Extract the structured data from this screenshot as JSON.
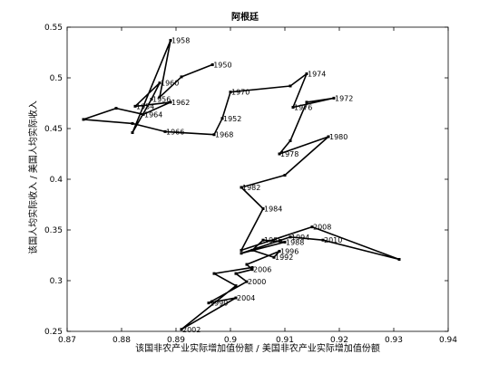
{
  "chart_data": {
    "type": "line",
    "title": "阿根廷",
    "xlabel": "该国非农产业实际增加值份额 / 美国非农产业实际增加值份额",
    "ylabel": "该国人均实际收入 / 美国人均实际收入",
    "xlim": [
      0.87,
      0.94
    ],
    "ylim": [
      0.25,
      0.55
    ],
    "xticks": [
      "0.87",
      "0.88",
      "0.89",
      "0.9",
      "0.91",
      "0.92",
      "0.93",
      "0.94"
    ],
    "yticks": [
      "0.25",
      "0.3",
      "0.35",
      "0.4",
      "0.45",
      "0.5",
      "0.55"
    ],
    "grid": false,
    "series": [
      {
        "color": "#000000",
        "points": [
          {
            "x": 0.8967,
            "y": 0.513,
            "label": "1950"
          },
          {
            "x": 0.891,
            "y": 0.501,
            "label": ""
          },
          {
            "x": 0.887,
            "y": 0.481,
            "label": ""
          },
          {
            "x": 0.889,
            "y": 0.537,
            "label": "1958"
          },
          {
            "x": 0.882,
            "y": 0.446,
            "label": ""
          },
          {
            "x": 0.8855,
            "y": 0.479,
            "label": "1956"
          },
          {
            "x": 0.887,
            "y": 0.495,
            "label": "1960"
          },
          {
            "x": 0.8825,
            "y": 0.472,
            "label": "1954"
          },
          {
            "x": 0.889,
            "y": 0.476,
            "label": "1962"
          },
          {
            "x": 0.884,
            "y": 0.464,
            "label": "1964"
          },
          {
            "x": 0.879,
            "y": 0.47,
            "label": ""
          },
          {
            "x": 0.873,
            "y": 0.459,
            "label": ""
          },
          {
            "x": 0.882,
            "y": 0.455,
            "label": ""
          },
          {
            "x": 0.888,
            "y": 0.447,
            "label": "1966"
          },
          {
            "x": 0.897,
            "y": 0.444,
            "label": "1968"
          },
          {
            "x": 0.8985,
            "y": 0.46,
            "label": "1952"
          },
          {
            "x": 0.9,
            "y": 0.486,
            "label": "1970"
          },
          {
            "x": 0.911,
            "y": 0.492,
            "label": ""
          },
          {
            "x": 0.914,
            "y": 0.504,
            "label": "1974"
          },
          {
            "x": 0.9115,
            "y": 0.471,
            "label": "1976"
          },
          {
            "x": 0.919,
            "y": 0.48,
            "label": "1972"
          },
          {
            "x": 0.914,
            "y": 0.476,
            "label": ""
          },
          {
            "x": 0.911,
            "y": 0.438,
            "label": ""
          },
          {
            "x": 0.909,
            "y": 0.425,
            "label": "1978"
          },
          {
            "x": 0.918,
            "y": 0.442,
            "label": "1980"
          },
          {
            "x": 0.91,
            "y": 0.404,
            "label": ""
          },
          {
            "x": 0.902,
            "y": 0.392,
            "label": "1982"
          },
          {
            "x": 0.906,
            "y": 0.371,
            "label": "1984"
          },
          {
            "x": 0.902,
            "y": 0.33,
            "label": ""
          },
          {
            "x": 0.915,
            "y": 0.353,
            "label": "2008"
          },
          {
            "x": 0.931,
            "y": 0.321,
            "label": ""
          },
          {
            "x": 0.917,
            "y": 0.34,
            "label": "2010"
          },
          {
            "x": 0.911,
            "y": 0.343,
            "label": "1994"
          },
          {
            "x": 0.902,
            "y": 0.327,
            "label": ""
          },
          {
            "x": 0.91,
            "y": 0.338,
            "label": "1988"
          },
          {
            "x": 0.906,
            "y": 0.34,
            "label": "1986"
          },
          {
            "x": 0.904,
            "y": 0.33,
            "label": ""
          },
          {
            "x": 0.908,
            "y": 0.323,
            "label": "1992"
          },
          {
            "x": 0.909,
            "y": 0.329,
            "label": "1996"
          },
          {
            "x": 0.903,
            "y": 0.316,
            "label": ""
          },
          {
            "x": 0.904,
            "y": 0.311,
            "label": "2006"
          },
          {
            "x": 0.901,
            "y": 0.307,
            "label": ""
          },
          {
            "x": 0.903,
            "y": 0.299,
            "label": "2000"
          },
          {
            "x": 0.896,
            "y": 0.278,
            "label": "1990"
          },
          {
            "x": 0.901,
            "y": 0.283,
            "label": "2004"
          },
          {
            "x": 0.891,
            "y": 0.252,
            "label": "2002"
          },
          {
            "x": 0.901,
            "y": 0.295,
            "label": ""
          },
          {
            "x": 0.897,
            "y": 0.307,
            "label": ""
          },
          {
            "x": 0.904,
            "y": 0.313,
            "label": ""
          }
        ]
      }
    ]
  }
}
